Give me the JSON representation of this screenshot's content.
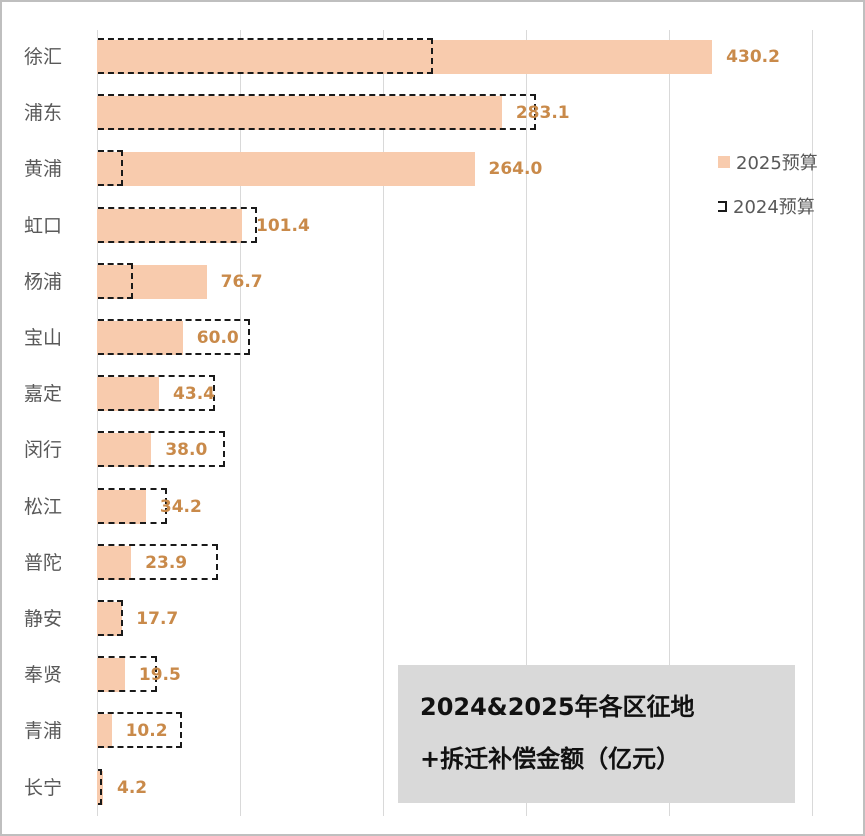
{
  "chart_data": {
    "type": "bar",
    "orientation": "horizontal",
    "title": "2024&2025年各区征地+拆迁补偿金额（亿元）",
    "title_lines": [
      "2024&2025年各区征地",
      "+拆迁补偿金额（亿元）"
    ],
    "xlabel": "",
    "ylabel": "",
    "xlim": [
      0,
      500
    ],
    "grid": true,
    "gridline_step": 100,
    "legend_position": "right",
    "categories": [
      "徐汇",
      "浦东",
      "黄浦",
      "虹口",
      "杨浦",
      "宝山",
      "嘉定",
      "闵行",
      "松江",
      "普陀",
      "静安",
      "奉贤",
      "青浦",
      "长宁"
    ],
    "series": [
      {
        "name": "2025预算",
        "style": "solid-fill",
        "color": "#f8cbad",
        "values": [
          430.2,
          283.1,
          264.0,
          101.4,
          76.7,
          60.0,
          43.4,
          38.0,
          34.2,
          23.9,
          17.7,
          19.5,
          10.2,
          4.2
        ],
        "labels": [
          "430.2",
          "283.1",
          "264.0",
          "101.4",
          "76.7",
          "60.0",
          "43.4",
          "38.0",
          "34.2",
          "23.9",
          "17.7",
          "19.5",
          "10.2",
          "4.2"
        ]
      },
      {
        "name": "2024预算",
        "style": "dashed-outline",
        "color": "#1a1a1a",
        "values": [
          234,
          306,
          17.5,
          111,
          24.5,
          106,
          82,
          89,
          48,
          84,
          17.5,
          41,
          59,
          3
        ]
      }
    ]
  },
  "legend": {
    "items": [
      {
        "label": "2025预算"
      },
      {
        "label": "2024预算"
      }
    ]
  },
  "colors": {
    "bar_2025": "#f8cbad",
    "outline_2024": "#1a1a1a",
    "data_label": "#c98a4a",
    "gridline": "#d9d9d9",
    "title_box": "#d9d9d9"
  }
}
